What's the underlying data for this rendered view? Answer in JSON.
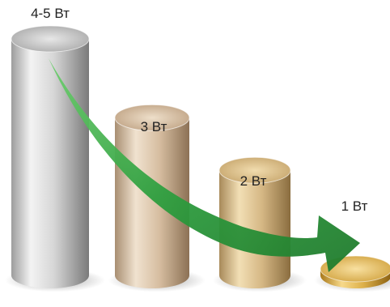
{
  "chart_data": {
    "type": "bar",
    "categories": [
      "4-5 Вт",
      "3 Вт",
      "2 Вт",
      "1 Вт"
    ],
    "values": [
      4.5,
      3,
      2,
      1
    ],
    "title": "",
    "xlabel": "",
    "ylabel": "",
    "ylim": [
      0,
      4.5
    ],
    "style": "3d-cylinders",
    "annotation": "green arrow descending from tallest to shortest",
    "colors": {
      "cylinder_1": "#c9c9c9",
      "cylinder_2": "#cdb59a",
      "cylinder_3": "#cfb07e",
      "cylinder_4": "#d9a83a",
      "arrow": "#2ea043"
    }
  }
}
